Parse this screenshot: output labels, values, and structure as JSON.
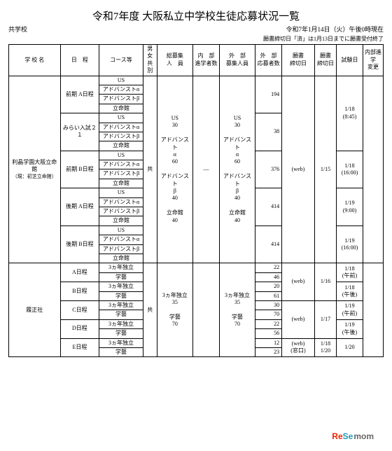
{
  "title": "令和7年度 大阪私立中学校生徒応募状況一覧",
  "meta": {
    "left": "共学校",
    "right": "令和7年1月14日（火）午後0時現在",
    "note": "願書締切日「済」は1月13日までに願書受付終了"
  },
  "headers": {
    "school": "学 校 名",
    "schedule": "日　程",
    "course": "コース等",
    "sex": "男女\n共別",
    "bosyu": "総募集\n人　員",
    "naibu": "内　部\n進学者数",
    "gaibu": "外　部\n募集人員",
    "obo": "外　部\n応募者数",
    "gmd": "願書\n締切日",
    "close": "願書\n締切日",
    "exam": "試験日",
    "change": "内部進学\n変更"
  },
  "schoolA": {
    "name": "利晶学園大阪立命館",
    "sub": "（現：初芝立命館）",
    "sex": "共",
    "bosyu": "US\n30\n\nアドバンスト\nα\n60\n\nアドバンスト\nβ\n40\n\n立命館\n40",
    "naibu": "—",
    "gaibu": "US\n30\n\nアドバンスト\nα\n60\n\nアドバンスト\nβ\n40\n\n立命館\n40",
    "gmd": "(web)",
    "close": "1/15",
    "blocks": [
      {
        "label": "前期 A日程",
        "courses": [
          "US",
          "アドバンストα",
          "アドバンストβ",
          "立命館"
        ],
        "obo": "194",
        "exam": "1/18\n(8:45)"
      },
      {
        "label": "みらい入試２１",
        "courses": [
          "US",
          "アドバンストα",
          "アドバンストβ",
          "立命館"
        ],
        "obo": "38",
        "exam": ""
      },
      {
        "label": "前期 B日程",
        "courses": [
          "US",
          "アドバンストα",
          "アドバンストβ",
          "立命館"
        ],
        "obo": "376",
        "exam": "1/18\n(16:00)"
      },
      {
        "label": "後期 A日程",
        "courses": [
          "US",
          "アドバンストα",
          "アドバンストβ",
          "立命館"
        ],
        "obo": "414",
        "exam": "1/19\n(9:00)"
      },
      {
        "label": "後期 B日程",
        "courses": [
          "US",
          "アドバンストα",
          "アドバンストβ",
          "立命館"
        ],
        "obo": "414",
        "exam": "1/19\n(16:00)"
      }
    ]
  },
  "schoolB": {
    "name": "履正社",
    "sex": "共",
    "bosyu": "3ヵ年独立\n35\n\n学藝\n70",
    "naibu": "",
    "gaibu": "3ヵ年独立\n35\n\n学藝\n70",
    "rows": [
      {
        "sched": "A日程",
        "c1": "3ヵ年独立",
        "v1": "22",
        "c2": "学藝",
        "v2": "46",
        "gmd": "(web)",
        "close": "1/16",
        "exam": "1/18\n(午前)"
      },
      {
        "sched": "B日程",
        "c1": "3ヵ年独立",
        "v1": "20",
        "c2": "学藝",
        "v2": "61",
        "gmd": "",
        "close": "",
        "exam": "1/18\n(午後)"
      },
      {
        "sched": "C日程",
        "c1": "3ヵ年独立",
        "v1": "30",
        "c2": "学藝",
        "v2": "70",
        "gmd": "(web)",
        "close": "1/17",
        "exam": "1/19\n(午前)"
      },
      {
        "sched": "D日程",
        "c1": "3ヵ年独立",
        "v1": "22",
        "c2": "学藝",
        "v2": "56",
        "gmd": "",
        "close": "",
        "exam": "1/19\n(午後)"
      },
      {
        "sched": "E日程",
        "c1": "3ヵ年独立",
        "v1": "12",
        "c2": "学藝",
        "v2": "23",
        "gmd": "(web)\n(窓口)",
        "close": "1/18\n1/20",
        "exam": "1/20\n"
      }
    ]
  },
  "logo": {
    "a": "Re",
    "b": "Se",
    "c": "mom"
  }
}
